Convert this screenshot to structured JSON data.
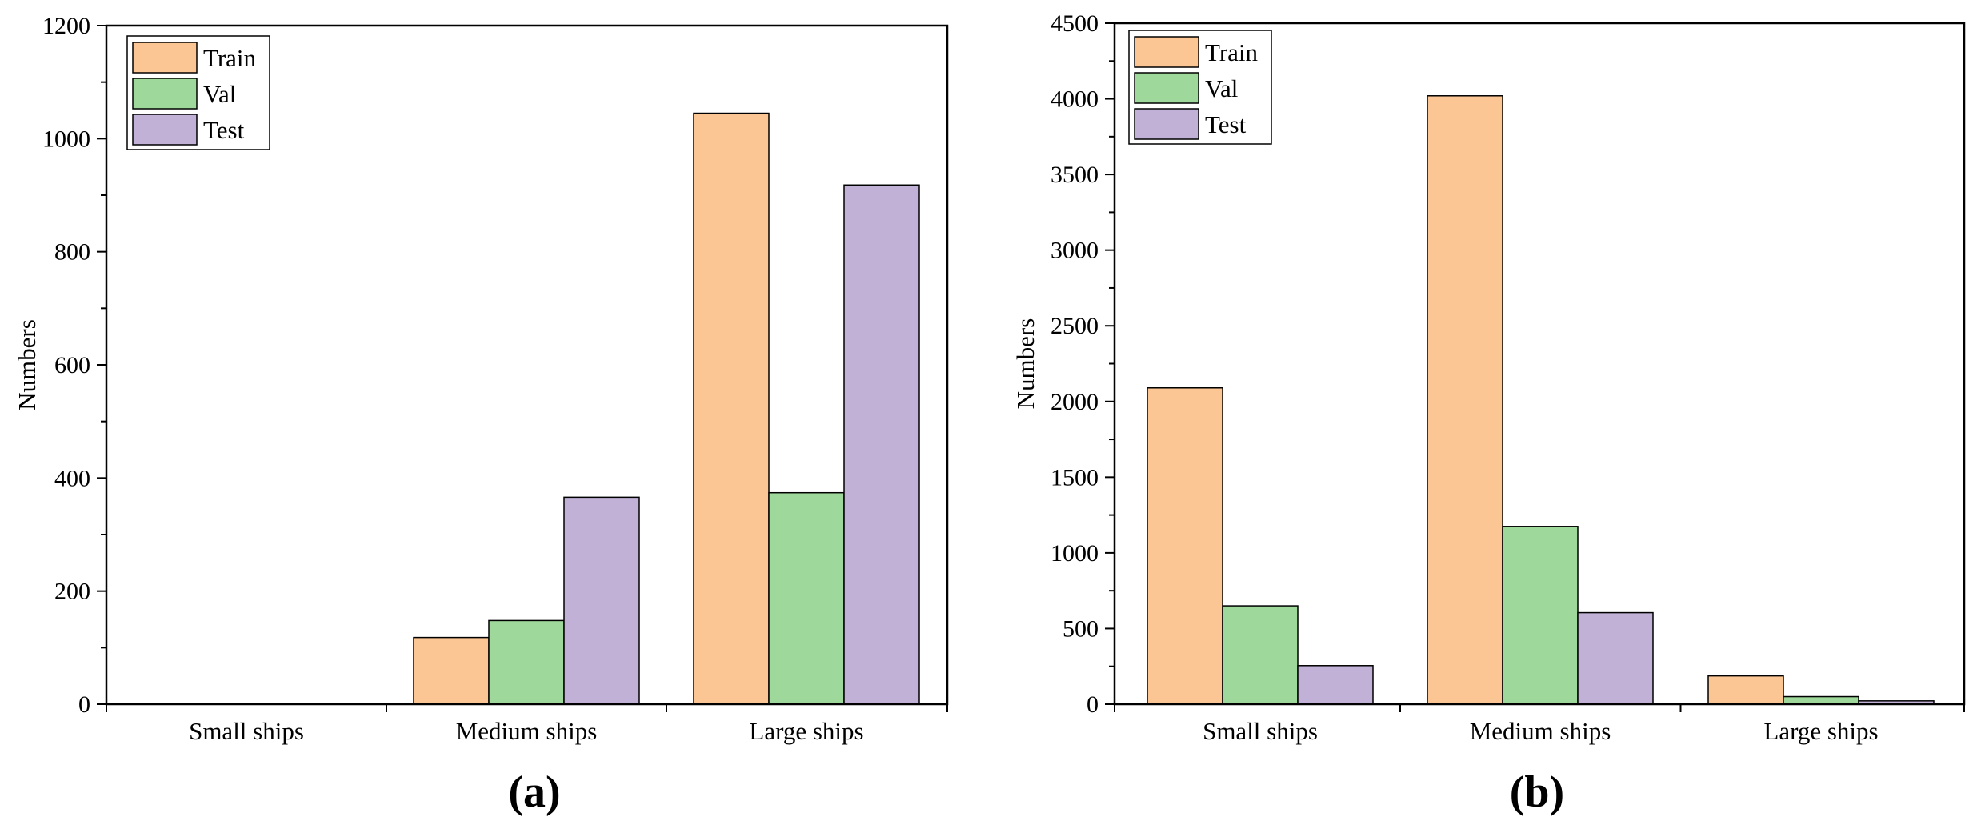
{
  "colors": {
    "train": "#fbc693",
    "val": "#9ed89b",
    "test": "#c1b1d6",
    "axis": "#000000"
  },
  "chart_data": [
    {
      "type": "bar",
      "panel_label": "(a)",
      "ylabel": "Numbers",
      "xlabel": "",
      "categories": [
        "Small ships",
        "Medium ships",
        "Large ships"
      ],
      "ylim": [
        0,
        1200
      ],
      "yticks": [
        "0",
        "200",
        "400",
        "600",
        "800",
        "1000",
        "1200"
      ],
      "legend_position": "top-left",
      "series": [
        {
          "name": "Train",
          "values": [
            0,
            118,
            1045
          ]
        },
        {
          "name": "Val",
          "values": [
            0,
            148,
            374
          ]
        },
        {
          "name": "Test",
          "values": [
            0,
            366,
            918
          ]
        }
      ]
    },
    {
      "type": "bar",
      "panel_label": "(b)",
      "ylabel": "Numbers",
      "xlabel": "",
      "categories": [
        "Small ships",
        "Medium ships",
        "Large ships"
      ],
      "ylim": [
        0,
        4500
      ],
      "yticks": [
        "0",
        "500",
        "1000",
        "1500",
        "2000",
        "2500",
        "3000",
        "3500",
        "4000",
        "4500"
      ],
      "legend_position": "top-left",
      "series": [
        {
          "name": "Train",
          "values": [
            2090,
            4020,
            187
          ]
        },
        {
          "name": "Val",
          "values": [
            650,
            1175,
            50
          ]
        },
        {
          "name": "Test",
          "values": [
            255,
            605,
            22
          ]
        }
      ]
    }
  ]
}
